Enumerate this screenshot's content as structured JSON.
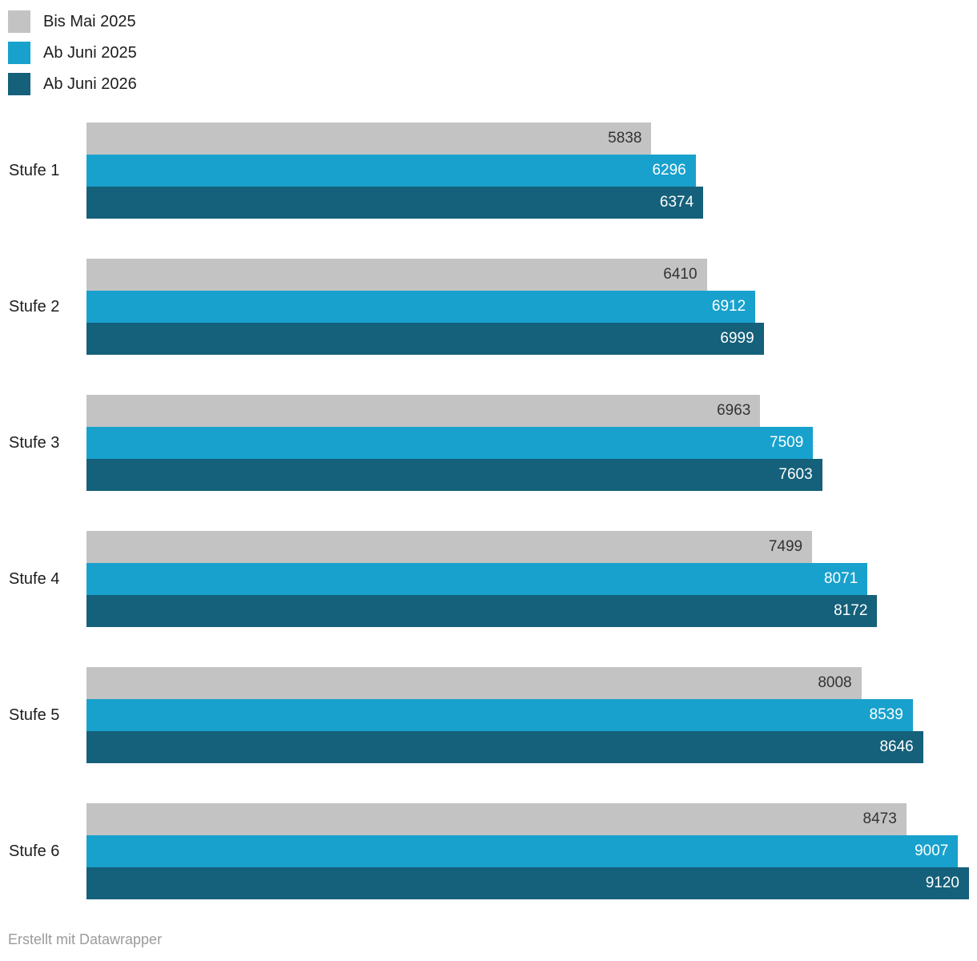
{
  "legend": {
    "items": [
      {
        "label": "Bis Mai 2025",
        "color": "#c3c3c3"
      },
      {
        "label": "Ab Juni 2025",
        "color": "#18a1cd"
      },
      {
        "label": "Ab Juni 2026",
        "color": "#15607a"
      }
    ]
  },
  "footer": {
    "text": "Erstellt mit Datawrapper"
  },
  "chart_data": {
    "type": "bar",
    "orientation": "horizontal",
    "title": "",
    "xlabel": "",
    "ylabel": "",
    "grid": false,
    "legend_position": "top-left",
    "value_labels": "inside-end",
    "xmax": 9120,
    "categories": [
      "Stufe 1",
      "Stufe 2",
      "Stufe 3",
      "Stufe 4",
      "Stufe 5",
      "Stufe 6"
    ],
    "series": [
      {
        "name": "Bis Mai 2025",
        "color": "#c3c3c3",
        "label_color": "#333333",
        "values": [
          5838,
          6410,
          6963,
          7499,
          8008,
          8473
        ]
      },
      {
        "name": "Ab Juni 2025",
        "color": "#18a1cd",
        "label_color": "#ffffff",
        "values": [
          6296,
          6912,
          7509,
          8071,
          8539,
          9007
        ]
      },
      {
        "name": "Ab Juni 2026",
        "color": "#15607a",
        "label_color": "#ffffff",
        "values": [
          6374,
          6999,
          7603,
          8172,
          8646,
          9120
        ]
      }
    ]
  }
}
